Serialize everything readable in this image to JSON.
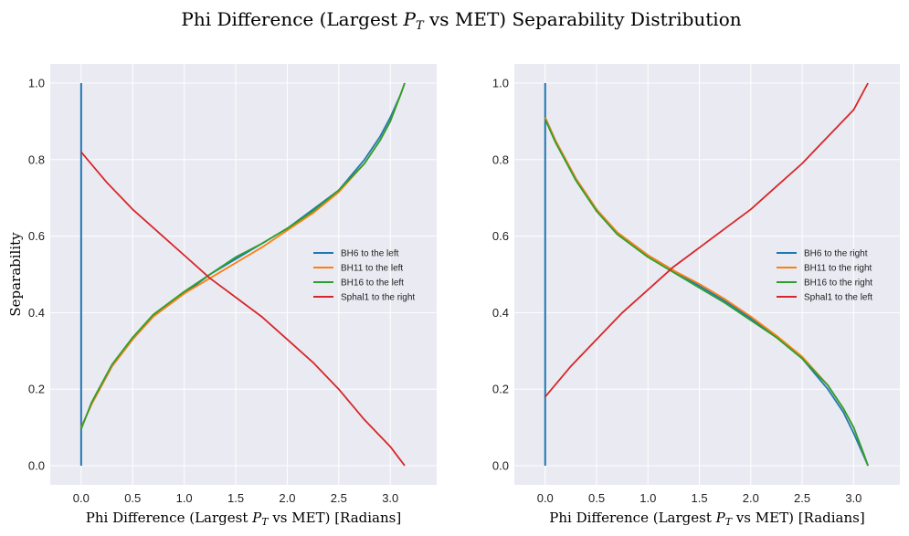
{
  "figure": {
    "title_prefix": "Phi Difference (Largest ",
    "title_var": "P",
    "title_sub": "T",
    "title_suffix": " vs MET) Separability Distribution"
  },
  "chart_data": [
    {
      "type": "line",
      "xlabel_prefix": "Phi Difference (Largest ",
      "xlabel_var": "P",
      "xlabel_sub": "T",
      "xlabel_suffix": " vs MET) [Radians]",
      "ylabel": "Separability",
      "xlim": [
        -0.3,
        3.45
      ],
      "ylim": [
        -0.05,
        1.05
      ],
      "xticks": [
        0.0,
        0.5,
        1.0,
        1.5,
        2.0,
        2.5,
        3.0
      ],
      "xtick_labels": [
        "0.0",
        "0.5",
        "1.0",
        "1.5",
        "2.0",
        "2.5",
        "3.0"
      ],
      "yticks": [
        0.0,
        0.2,
        0.4,
        0.6,
        0.8,
        1.0
      ],
      "ytick_labels": [
        "0.0",
        "0.2",
        "0.4",
        "0.6",
        "0.8",
        "1.0"
      ],
      "grid": true,
      "legend_position": "center-right",
      "vline": {
        "x": 0.0,
        "ymin": 0.0,
        "ymax": 1.0,
        "color": "#1f77b4"
      },
      "series": [
        {
          "name": "BH6 to the left",
          "color": "#1f77b4",
          "x": [
            0.0,
            0.1,
            0.2,
            0.3,
            0.5,
            0.7,
            1.0,
            1.25,
            1.5,
            1.75,
            2.0,
            2.25,
            2.5,
            2.75,
            2.9,
            3.0,
            3.1,
            3.14
          ],
          "y": [
            0.1,
            0.16,
            0.21,
            0.26,
            0.33,
            0.39,
            0.45,
            0.5,
            0.54,
            0.58,
            0.62,
            0.67,
            0.72,
            0.8,
            0.86,
            0.91,
            0.97,
            1.0
          ]
        },
        {
          "name": "BH11 to the left",
          "color": "#ff7f0e",
          "x": [
            0.0,
            0.1,
            0.2,
            0.3,
            0.5,
            0.7,
            1.0,
            1.25,
            1.5,
            1.75,
            2.0,
            2.25,
            2.5,
            2.75,
            2.9,
            3.0,
            3.1,
            3.14
          ],
          "y": [
            0.1,
            0.16,
            0.21,
            0.26,
            0.33,
            0.39,
            0.45,
            0.49,
            0.53,
            0.57,
            0.615,
            0.66,
            0.715,
            0.79,
            0.85,
            0.9,
            0.97,
            1.0
          ]
        },
        {
          "name": "BH16 to the left",
          "color": "#2ca02c",
          "x": [
            0.0,
            0.1,
            0.2,
            0.3,
            0.5,
            0.7,
            1.0,
            1.25,
            1.5,
            1.75,
            2.0,
            2.25,
            2.5,
            2.75,
            2.9,
            3.0,
            3.1,
            3.14
          ],
          "y": [
            0.095,
            0.165,
            0.215,
            0.265,
            0.335,
            0.395,
            0.455,
            0.5,
            0.545,
            0.58,
            0.62,
            0.665,
            0.72,
            0.79,
            0.85,
            0.9,
            0.97,
            1.0
          ]
        },
        {
          "name": "Sphal1 to the right",
          "color": "#d62728",
          "x": [
            0.0,
            0.25,
            0.5,
            0.75,
            1.0,
            1.25,
            1.5,
            1.75,
            2.0,
            2.25,
            2.5,
            2.75,
            3.0,
            3.14
          ],
          "y": [
            0.82,
            0.74,
            0.67,
            0.61,
            0.55,
            0.49,
            0.44,
            0.39,
            0.33,
            0.27,
            0.2,
            0.12,
            0.05,
            0.0
          ]
        }
      ]
    },
    {
      "type": "line",
      "xlabel_prefix": "Phi Difference (Largest ",
      "xlabel_var": "P",
      "xlabel_sub": "T",
      "xlabel_suffix": " vs MET) [Radians]",
      "ylabel": "",
      "xlim": [
        -0.3,
        3.45
      ],
      "ylim": [
        -0.05,
        1.05
      ],
      "xticks": [
        0.0,
        0.5,
        1.0,
        1.5,
        2.0,
        2.5,
        3.0
      ],
      "xtick_labels": [
        "0.0",
        "0.5",
        "1.0",
        "1.5",
        "2.0",
        "2.5",
        "3.0"
      ],
      "yticks": [
        0.0,
        0.2,
        0.4,
        0.6,
        0.8,
        1.0
      ],
      "ytick_labels": [
        "0.0",
        "0.2",
        "0.4",
        "0.6",
        "0.8",
        "1.0"
      ],
      "grid": true,
      "legend_position": "center-right",
      "vline": {
        "x": 0.0,
        "ymin": 0.0,
        "ymax": 1.0,
        "color": "#1f77b4"
      },
      "series": [
        {
          "name": "BH6 to the right",
          "color": "#1f77b4",
          "x": [
            0.0,
            0.1,
            0.2,
            0.3,
            0.5,
            0.7,
            1.0,
            1.25,
            1.5,
            1.75,
            2.0,
            2.25,
            2.5,
            2.75,
            2.9,
            3.0,
            3.1,
            3.14
          ],
          "y": [
            0.91,
            0.85,
            0.8,
            0.75,
            0.67,
            0.61,
            0.55,
            0.51,
            0.47,
            0.43,
            0.385,
            0.335,
            0.28,
            0.2,
            0.14,
            0.085,
            0.025,
            0.0
          ]
        },
        {
          "name": "BH11 to the right",
          "color": "#ff7f0e",
          "x": [
            0.0,
            0.1,
            0.2,
            0.3,
            0.5,
            0.7,
            1.0,
            1.25,
            1.5,
            1.75,
            2.0,
            2.25,
            2.5,
            2.75,
            2.9,
            3.0,
            3.1,
            3.14
          ],
          "y": [
            0.91,
            0.85,
            0.8,
            0.75,
            0.67,
            0.61,
            0.55,
            0.51,
            0.475,
            0.435,
            0.39,
            0.34,
            0.285,
            0.21,
            0.15,
            0.1,
            0.03,
            0.0
          ]
        },
        {
          "name": "BH16 to the right",
          "color": "#2ca02c",
          "x": [
            0.0,
            0.1,
            0.2,
            0.3,
            0.5,
            0.7,
            1.0,
            1.25,
            1.5,
            1.75,
            2.0,
            2.25,
            2.5,
            2.75,
            2.9,
            3.0,
            3.1,
            3.14
          ],
          "y": [
            0.905,
            0.845,
            0.795,
            0.745,
            0.665,
            0.605,
            0.545,
            0.505,
            0.465,
            0.425,
            0.38,
            0.335,
            0.28,
            0.21,
            0.15,
            0.1,
            0.03,
            0.0
          ]
        },
        {
          "name": "Sphal1 to the left",
          "color": "#d62728",
          "x": [
            0.0,
            0.25,
            0.5,
            0.75,
            1.0,
            1.25,
            1.5,
            1.75,
            2.0,
            2.25,
            2.5,
            2.75,
            3.0,
            3.14
          ],
          "y": [
            0.18,
            0.26,
            0.33,
            0.4,
            0.46,
            0.52,
            0.57,
            0.62,
            0.67,
            0.73,
            0.79,
            0.86,
            0.93,
            1.0
          ]
        }
      ]
    }
  ]
}
